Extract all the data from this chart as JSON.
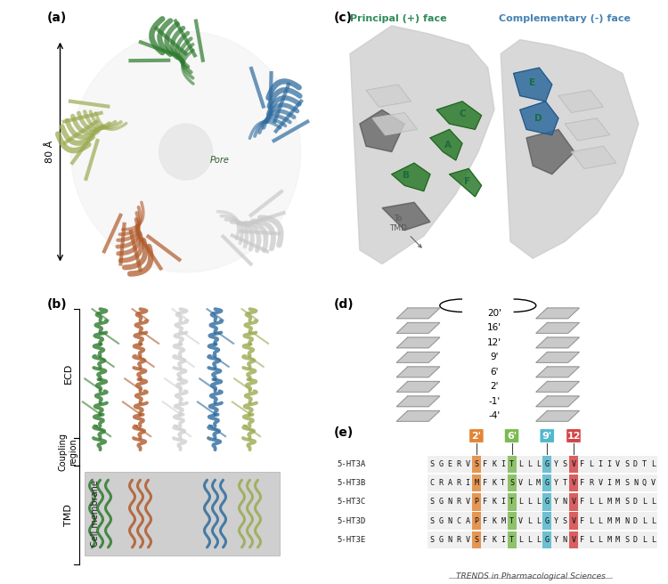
{
  "fig_bg": "#ffffff",
  "panel_labels": [
    "(a)",
    "(b)",
    "(c)",
    "(d)",
    "(e)"
  ],
  "panel_a": {
    "label": "(a)",
    "dim_label": "80 Å",
    "pore_label": "Pore",
    "subunit_colors": [
      "#c8c8c8",
      "#2e6b9e",
      "#c8c8c8",
      "#b05a2a",
      "#9aaa50"
    ],
    "green_color": "#2d7a2d"
  },
  "panel_b": {
    "label": "(b)",
    "ecd_label": "ECD",
    "coupling_label": "Coupling\nregion",
    "tmd_label": "TMD",
    "membrane_label": "Cell membrane",
    "membrane_color": "#aaaaaa",
    "subunit_colors": [
      "#2d7a2d",
      "#b05a2a",
      "#d0d0d0",
      "#2e6b9e",
      "#9aaa50"
    ]
  },
  "panel_c": {
    "label": "(c)",
    "principal_label": "Principal (+) face",
    "principal_color": "#2e8b57",
    "complementary_label": "Complementary (-) face",
    "complementary_color": "#4682b4",
    "to_tmd_label": "To\nTMD",
    "loop_labels": [
      "A",
      "B",
      "C",
      "D",
      "E",
      "F"
    ],
    "loop_label_color": "#1a6b3e"
  },
  "panel_d": {
    "label": "(d)",
    "prime_labels": [
      "20'",
      "16'",
      "12'",
      "9'",
      "6'",
      "2'",
      "-1'",
      "-4'"
    ]
  },
  "panel_e": {
    "label": "(e)",
    "seq_rows": [
      {
        "name": "5-HT3A",
        "seq": "SGERVSFKITLLLGYSVFLIIVSDTL"
      },
      {
        "name": "5-HT3B",
        "seq": "CRARIMFKTSVLMGYTVFRVIMSNQV"
      },
      {
        "name": "5-HT3C",
        "seq": "SGNRVPFKITLLLGYNVFLLMMSDLL"
      },
      {
        "name": "5-HT3D",
        "seq": "SGNCAPFKMTVLLGYSVFLLMMNDLL"
      },
      {
        "name": "5-HT3E",
        "seq": "SGNRVSFKITLLLGYNVFLLMMSDLL"
      }
    ],
    "hl_cols": [
      5,
      9,
      13,
      16
    ],
    "hl_colors": [
      "#e07820",
      "#6db33f",
      "#40b0c8",
      "#d03030"
    ],
    "hl_labels": [
      "2'",
      "6'",
      "9'",
      "12"
    ],
    "footer": "TRENDS in Pharmacological Sciences"
  }
}
